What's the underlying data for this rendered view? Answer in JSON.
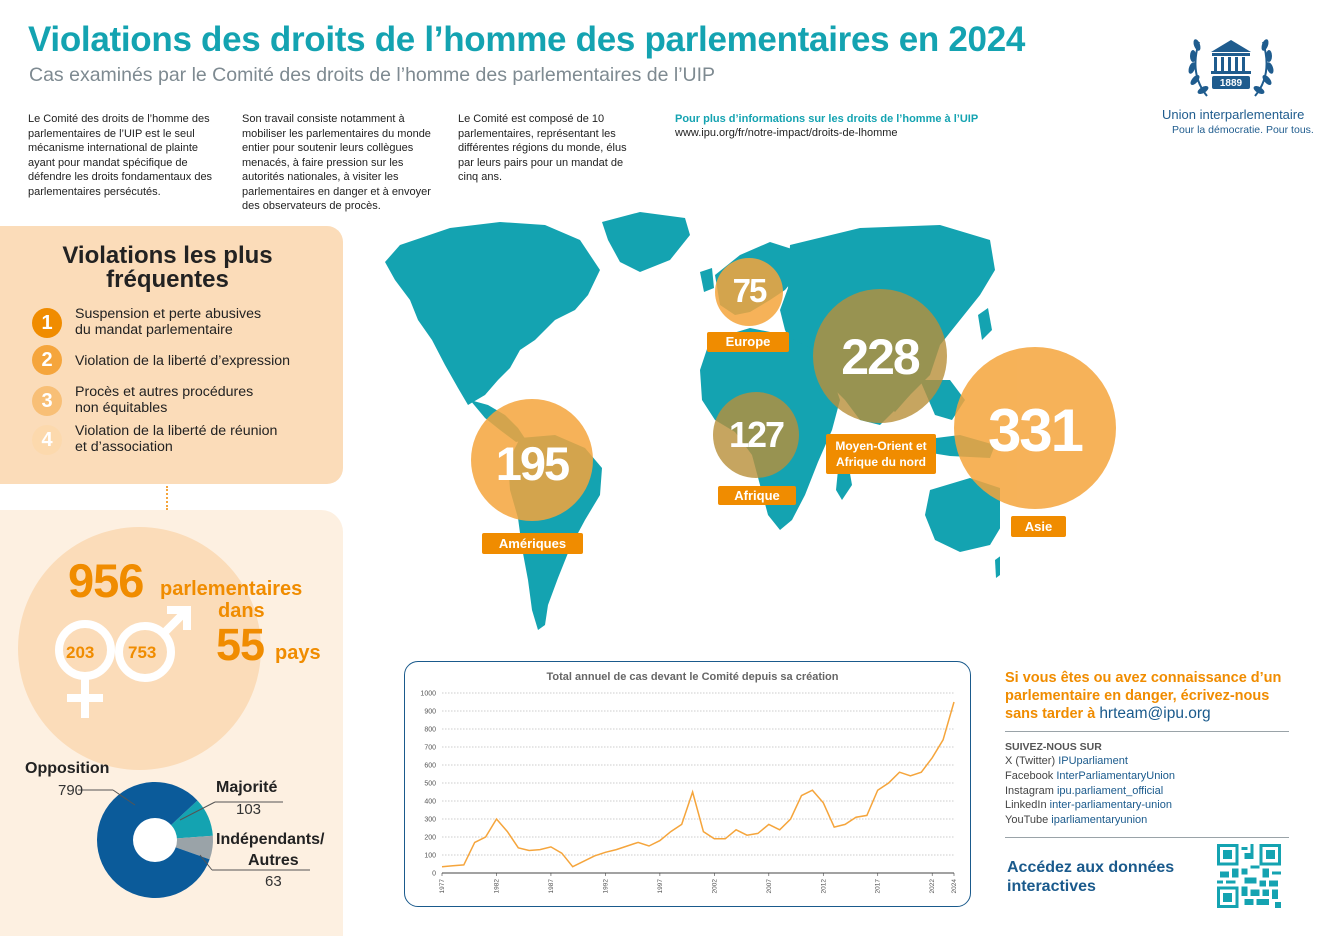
{
  "header": {
    "title": "Violations des droits de l’homme des parlementaires en 2024",
    "subtitle": "Cas examinés par le Comité des droits de l’homme des parlementaires de l’UIP"
  },
  "intro": {
    "col1": "Le Comité des droits de l’homme des parlementaires de l’UIP est le seul mécanisme international de plainte ayant pour mandat spécifique de défendre les droits fondamentaux des parlementaires persécutés.",
    "col2": "Son travail consiste notamment à mobiliser les parlementaires du monde entier pour soutenir leurs collègues menacés, à faire pression sur les autorités nationales, à visiter les parlementaires en danger et à envoyer des observateurs de procès.",
    "col3": "Le Comité est composé de 10 parlementaires, représentant les différentes régions du monde, élus par leurs pairs pour un mandat de cinq ans.",
    "info_label": "Pour plus d’informations sur les droits de l’homme à l’UIP",
    "info_url": "www.ipu.org/fr/notre-impact/droits-de-lhomme"
  },
  "logo": {
    "year": "1889",
    "name": "Union interparlementaire",
    "tagline": "Pour la démocratie. Pour tous."
  },
  "violations": {
    "title_line1": "Violations les plus",
    "title_line2": "fréquentes",
    "items": [
      {
        "num": "1",
        "line1": "Suspension et perte abusives",
        "line2": "du mandat parlementaire",
        "color": "#f08c00"
      },
      {
        "num": "2",
        "line1": "Violation de la liberté d’expression",
        "line2": "",
        "color": "#f5a53c"
      },
      {
        "num": "3",
        "line1": "Procès et autres procédures",
        "line2": "non équitables",
        "color": "#f8bf76"
      },
      {
        "num": "4",
        "line1": "Violation de la liberté de réunion",
        "line2": "et d’association",
        "color": "#fcd9ad"
      }
    ]
  },
  "stats": {
    "total": "956",
    "total_label": "parlementaires",
    "dans": "dans",
    "countries": "55",
    "countries_label": "pays",
    "women": "203",
    "men": "753"
  },
  "affiliation": {
    "opposition_label": "Opposition",
    "opposition_value": "790",
    "majority_label": "Majorité",
    "majority_value": "103",
    "independent_label_line1": "Indépendants/",
    "independent_label_line2": "Autres",
    "independent_value": "63",
    "colors": {
      "opposition": "#0b5b9a",
      "majority": "#14a3b1",
      "independent": "#9aa3a8"
    }
  },
  "regions": {
    "europe": {
      "value": "75",
      "label": "Europe"
    },
    "mena": {
      "value": "228",
      "label_line1": "Moyen-Orient et",
      "label_line2": "Afrique du nord"
    },
    "afrique": {
      "value": "127",
      "label": "Afrique"
    },
    "ameriques": {
      "value": "195",
      "label": "Amériques"
    },
    "asie": {
      "value": "331",
      "label": "Asie"
    }
  },
  "chart_data": {
    "type": "line",
    "title": "Total annuel de cas devant le Comité depuis sa création",
    "x": [
      1977,
      1978,
      1979,
      1980,
      1981,
      1982,
      1983,
      1984,
      1985,
      1986,
      1987,
      1988,
      1989,
      1990,
      1991,
      1992,
      1993,
      1994,
      1995,
      1996,
      1997,
      1998,
      1999,
      2000,
      2001,
      2002,
      2003,
      2004,
      2005,
      2006,
      2007,
      2008,
      2009,
      2010,
      2011,
      2012,
      2013,
      2014,
      2015,
      2016,
      2017,
      2018,
      2019,
      2020,
      2021,
      2022,
      2023,
      2024
    ],
    "y": [
      35,
      40,
      45,
      170,
      200,
      300,
      230,
      140,
      125,
      130,
      145,
      110,
      35,
      65,
      95,
      115,
      130,
      150,
      170,
      150,
      180,
      230,
      270,
      450,
      230,
      190,
      190,
      240,
      210,
      220,
      270,
      240,
      300,
      430,
      460,
      390,
      255,
      270,
      310,
      320,
      460,
      500,
      560,
      540,
      560,
      640,
      740,
      950
    ],
    "xticks": [
      "1977",
      "1982",
      "1987",
      "1992",
      "1997",
      "2002",
      "2007",
      "2012",
      "2017",
      "2022",
      "2024"
    ],
    "yticks": [
      "0",
      "100",
      "200",
      "300",
      "400",
      "500",
      "600",
      "700",
      "800",
      "900",
      "1000"
    ],
    "ylim": [
      0,
      1000
    ],
    "grid": true
  },
  "contact": {
    "cta_line1": "Si vous êtes ou avez connaissance d’un",
    "cta_line2": "parlementaire en danger, écrivez-nous",
    "cta_line3": "sans tarder à",
    "email": "hrteam@ipu.org",
    "follow": "SUIVEZ-NOUS SUR",
    "socials": [
      {
        "platform": "X (Twitter)",
        "handle": "IPUparliament"
      },
      {
        "platform": "Facebook",
        "handle": "InterParliamentaryUnion"
      },
      {
        "platform": "Instagram",
        "handle": "ipu.parliament_official"
      },
      {
        "platform": "LinkedIn",
        "handle": "inter-parliamentary-union"
      },
      {
        "platform": "YouTube",
        "handle": "iparliamentaryunion"
      }
    ],
    "access_line1": "Accédez aux données",
    "access_line2": "interactives"
  },
  "palette": {
    "teal": "#14a3b1",
    "orange": "#f08c00",
    "navy": "#1a5a8c",
    "peach": "#fbdcb9",
    "map_circle": "#f5a53c"
  }
}
